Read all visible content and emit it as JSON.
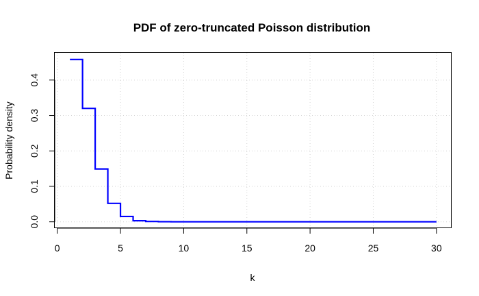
{
  "chart_data": {
    "type": "line",
    "step": true,
    "title": "PDF of zero-truncated Poisson distribution",
    "xlabel": "k",
    "ylabel": "Probability density",
    "xlim": [
      -0.2,
      31.2
    ],
    "ylim": [
      -0.018,
      0.477
    ],
    "x_ticks": [
      0,
      5,
      10,
      15,
      20,
      25,
      30
    ],
    "y_ticks": [
      0.0,
      0.1,
      0.2,
      0.3,
      0.4
    ],
    "y_tick_labels": [
      "0.0",
      "0.1",
      "0.2",
      "0.3",
      "0.4"
    ],
    "grid": true,
    "legend": "none",
    "color": "#0000ff",
    "series": [
      {
        "x": [
          1,
          2,
          3,
          4,
          5,
          6,
          7,
          8,
          9,
          10,
          11,
          12,
          13,
          14,
          15,
          16,
          17,
          18,
          19,
          20,
          21,
          22,
          23,
          24,
          25,
          26,
          27,
          28,
          29,
          30
        ],
        "values": [
          0.458,
          0.32,
          0.149,
          0.052,
          0.015,
          0.003,
          0.001,
          0.0002,
          0,
          0,
          0,
          0,
          0,
          0,
          0,
          0,
          0,
          0,
          0,
          0,
          0,
          0,
          0,
          0,
          0,
          0,
          0,
          0,
          0,
          0
        ]
      }
    ]
  }
}
